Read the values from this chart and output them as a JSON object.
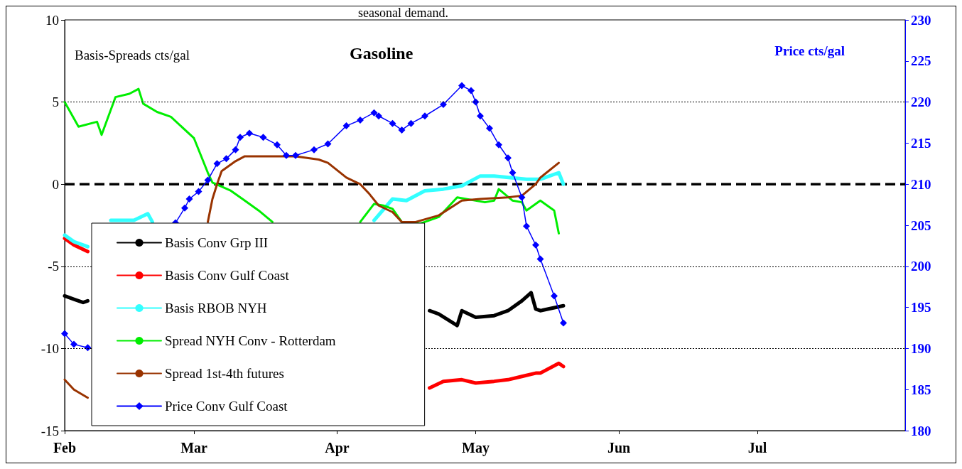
{
  "chart_data": {
    "type": "line",
    "title": "Gasoline",
    "ylabel": "Basis-Spreads cts/gal",
    "y2label": "Price cts/gal",
    "annotations": [
      "seasonal demand."
    ],
    "xlim": [
      "--02-01",
      "--08-02"
    ],
    "xticks": [
      {
        "value": "--02-01",
        "label": "Feb"
      },
      {
        "value": "--03-01",
        "label": "Mar"
      },
      {
        "value": "--04-01",
        "label": "Apr"
      },
      {
        "value": "--05-01",
        "label": "May"
      },
      {
        "value": "--06-01",
        "label": "Jun"
      },
      {
        "value": "--07-01",
        "label": "Jul"
      }
    ],
    "ylim": [
      -15,
      10
    ],
    "yticks": [
      -15,
      -10,
      -5,
      0,
      5,
      10
    ],
    "y2lim": [
      180,
      230
    ],
    "y2ticks": [
      180,
      185,
      190,
      195,
      200,
      205,
      210,
      215,
      220,
      225,
      230
    ],
    "grid": "y",
    "legend": "bottom left",
    "marker": "none",
    "line_style": "solid",
    "ref_lines": [
      {
        "axis": "y",
        "value": 0,
        "color": "#000000",
        "line_style": "dashed"
      }
    ],
    "series": [
      {
        "name": "Basis Conv Grp III",
        "color": "#000000",
        "x": [
          "--02-01",
          "--02-03",
          "--02-05",
          "--02-06",
          "--03-15",
          "--04-21",
          "--04-23",
          "--04-27",
          "--04-28",
          "--05-01",
          "--05-05",
          "--05-08",
          "--05-11",
          "--05-13",
          "--05-14",
          "--05-15",
          "--05-20"
        ],
        "values": [
          -6.8,
          -7.0,
          -7.2,
          -7.1,
          null,
          -7.7,
          -7.9,
          -8.6,
          -7.7,
          -8.1,
          -8.0,
          -7.7,
          -7.1,
          -6.6,
          -7.6,
          -7.7,
          -7.4
        ]
      },
      {
        "name": "Basis Conv Gulf Coast",
        "color": "#ff0000",
        "x": [
          "--02-01",
          "--02-03",
          "--02-06",
          "--03-15",
          "--04-21",
          "--04-24",
          "--04-28",
          "--05-01",
          "--05-05",
          "--05-08",
          "--05-11",
          "--05-14",
          "--05-15",
          "--05-19",
          "--05-20"
        ],
        "values": [
          -3.3,
          -3.7,
          -4.1,
          null,
          -12.4,
          -12.0,
          -11.9,
          -12.1,
          -12.0,
          -11.9,
          -11.7,
          -11.5,
          -11.5,
          -10.9,
          -11.1
        ]
      },
      {
        "name": "Basis RBOB NYH",
        "color": "#33ffff",
        "x": [
          "--02-01",
          "--02-03",
          "--02-06",
          "--02-08",
          "--02-11",
          "--02-16",
          "--02-19",
          "--02-20",
          "--03-20",
          "--04-09",
          "--04-13",
          "--04-16",
          "--04-20",
          "--04-24",
          "--04-28",
          "--05-02",
          "--05-05",
          "--05-12",
          "--05-15",
          "--05-19",
          "--05-20"
        ],
        "values": [
          -3.1,
          -3.5,
          -3.8,
          null,
          -2.2,
          -2.2,
          -1.8,
          -2.3,
          null,
          -2.2,
          -0.9,
          -1.0,
          -0.4,
          -0.3,
          -0.1,
          0.5,
          0.5,
          0.3,
          0.3,
          0.7,
          0.0
        ]
      },
      {
        "name": "Spread NYH Conv - Rotterdam",
        "color": "#00ee00",
        "x": [
          "--02-01",
          "--02-04",
          "--02-08",
          "--02-09",
          "--02-12",
          "--02-15",
          "--02-17",
          "--02-18",
          "--02-21",
          "--02-24",
          "--03-01",
          "--03-04",
          "--03-05",
          "--03-09",
          "--03-12",
          "--03-15",
          "--03-18",
          "--03-25",
          "--04-06",
          "--04-09",
          "--04-11",
          "--04-13",
          "--04-15",
          "--04-19",
          "--04-23",
          "--04-27",
          "--05-03",
          "--05-05",
          "--05-06",
          "--05-09",
          "--05-11",
          "--05-12",
          "--05-15",
          "--05-18",
          "--05-19"
        ],
        "values": [
          5.0,
          3.5,
          3.8,
          3.0,
          5.3,
          5.5,
          5.8,
          4.9,
          4.4,
          4.1,
          2.8,
          0.7,
          0.1,
          -0.4,
          -1.0,
          -1.6,
          -2.3,
          null,
          -2.3,
          -1.2,
          -1.3,
          -1.5,
          -2.3,
          -2.4,
          -2.0,
          -0.8,
          -1.1,
          -1.0,
          -0.3,
          -1.0,
          -1.1,
          -1.6,
          -1.0,
          -1.6,
          -3.0
        ]
      },
      {
        "name": "Spread 1st-4th futures",
        "color": "#993300",
        "x": [
          "--02-01",
          "--02-03",
          "--02-06",
          "--02-20",
          "--03-04",
          "--03-05",
          "--03-06",
          "--03-07",
          "--03-10",
          "--03-12",
          "--03-18",
          "--03-23",
          "--03-28",
          "--03-30",
          "--04-03",
          "--04-06",
          "--04-08",
          "--04-10",
          "--04-13",
          "--04-15",
          "--04-18",
          "--04-23",
          "--04-28",
          "--05-02",
          "--05-08",
          "--05-11",
          "--05-14",
          "--05-15",
          "--05-19"
        ],
        "values": [
          -11.9,
          -12.5,
          -13.0,
          null,
          -2.3,
          -0.9,
          0.0,
          0.8,
          1.4,
          1.7,
          1.7,
          1.7,
          1.5,
          1.3,
          0.4,
          0.0,
          -0.6,
          -1.3,
          -1.7,
          -2.3,
          -2.3,
          -1.9,
          -1.0,
          -0.9,
          -0.8,
          -0.7,
          0.0,
          0.4,
          1.3
        ]
      },
      {
        "name": "Price Conv Gulf Coast",
        "color": "#0000ff",
        "axis": "y2",
        "marker": "diamond",
        "x": [
          "--02-01",
          "--02-03",
          "--02-06",
          "--02-15",
          "--02-25",
          "--02-27",
          "--02-28",
          "--03-02",
          "--03-04",
          "--03-06",
          "--03-08",
          "--03-10",
          "--03-11",
          "--03-13",
          "--03-16",
          "--03-19",
          "--03-21",
          "--03-23",
          "--03-27",
          "--03-30",
          "--04-03",
          "--04-06",
          "--04-09",
          "--04-10",
          "--04-13",
          "--04-15",
          "--04-17",
          "--04-20",
          "--04-24",
          "--04-28",
          "--04-30",
          "--05-01",
          "--05-02",
          "--05-04",
          "--05-06",
          "--05-08",
          "--05-09",
          "--05-11",
          "--05-12",
          "--05-14",
          "--05-15",
          "--05-18",
          "--05-20"
        ],
        "values": [
          191.8,
          190.5,
          190.1,
          null,
          205.3,
          207.1,
          208.2,
          209.1,
          210.5,
          212.5,
          213.1,
          214.2,
          215.7,
          216.2,
          215.7,
          214.8,
          213.5,
          213.5,
          214.2,
          214.9,
          217.1,
          217.8,
          218.7,
          218.3,
          217.4,
          216.6,
          217.4,
          218.3,
          219.7,
          222.0,
          221.4,
          220.0,
          218.3,
          216.8,
          214.8,
          213.2,
          211.4,
          208.4,
          204.9,
          202.6,
          200.9,
          196.4,
          193.1
        ]
      }
    ]
  }
}
